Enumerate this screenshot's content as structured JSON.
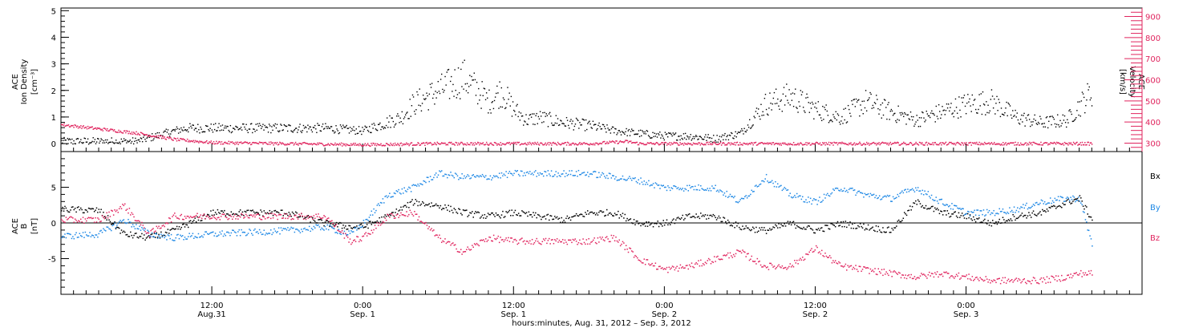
{
  "chart_data": [
    {
      "type": "scatter",
      "panel": "ion-density-velocity",
      "ylabel_left": [
        "ACE",
        "Ion Density",
        "[cm⁻³]"
      ],
      "ylabel_right": [
        "ACE",
        "Velocity",
        "[km/s]"
      ],
      "left_axis": {
        "ylim": [
          -0.3,
          5.1
        ],
        "ticks": [
          "0",
          "1",
          "2",
          "3",
          "4",
          "5"
        ],
        "tick_values": [
          0,
          1,
          2,
          3,
          4,
          5
        ]
      },
      "right_axis": {
        "ylim": [
          260,
          940
        ],
        "ticks": [
          "300",
          "400",
          "500",
          "600",
          "700",
          "800",
          "900"
        ],
        "tick_values": [
          300,
          400,
          500,
          600,
          700,
          800,
          900
        ]
      },
      "series": [
        {
          "name": "Ion Density",
          "axis": "left",
          "color": "#000000",
          "x_hours": [
            0,
            6,
            9,
            10,
            12,
            15,
            18,
            21,
            24,
            27,
            28,
            30,
            32,
            34,
            35,
            36,
            37,
            38,
            40,
            42,
            44,
            46,
            48,
            50,
            52,
            54,
            56,
            58,
            60,
            62,
            64,
            66,
            68,
            70,
            72,
            74,
            76,
            78,
            80,
            82
          ],
          "y": [
            0.1,
            0.1,
            0.5,
            0.6,
            0.6,
            0.6,
            0.6,
            0.6,
            0.5,
            1.0,
            1.5,
            2.0,
            2.5,
            1.6,
            2.0,
            1.3,
            0.9,
            1.0,
            0.8,
            0.7,
            0.5,
            0.4,
            0.3,
            0.3,
            0.2,
            0.4,
            1.5,
            1.8,
            1.3,
            1.0,
            1.6,
            1.2,
            0.9,
            1.2,
            1.5,
            1.6,
            1.0,
            0.8,
            0.9,
            2.0
          ]
        },
        {
          "name": "Velocity",
          "axis": "right",
          "color": "#e0245e",
          "x_hours": [
            0,
            3,
            6,
            9,
            12,
            18,
            24,
            30,
            36,
            42,
            45,
            46,
            48,
            54,
            60,
            66,
            72,
            78,
            82
          ],
          "y": [
            390,
            370,
            350,
            320,
            305,
            300,
            295,
            300,
            300,
            300,
            310,
            300,
            300,
            300,
            300,
            300,
            300,
            300,
            300
          ]
        }
      ]
    },
    {
      "type": "scatter",
      "panel": "magnetic-field",
      "ylabel_left": [
        "ACE",
        "B",
        "[nT]"
      ],
      "ylim": [
        -10,
        10
      ],
      "ticks": [
        "-5",
        "0",
        "5"
      ],
      "tick_values": [
        -5,
        0,
        5
      ],
      "legend": [
        "Bx",
        "By",
        "Bz"
      ],
      "legend_placement": "right",
      "series": [
        {
          "name": "Bx",
          "color": "#000000",
          "x_hours": [
            0,
            3,
            5,
            7,
            9,
            12,
            18,
            21,
            23,
            24,
            26,
            28,
            30,
            32,
            34,
            36,
            38,
            40,
            42,
            44,
            46,
            48,
            50,
            52,
            54,
            56,
            58,
            60,
            62,
            64,
            66,
            68,
            70,
            72,
            74,
            76,
            78,
            80,
            81,
            82
          ],
          "y": [
            2.0,
            1.8,
            -1.5,
            -2.0,
            -1.0,
            1.5,
            1.5,
            0.0,
            -0.5,
            -0.5,
            1.0,
            3.0,
            2.5,
            1.5,
            1.0,
            1.5,
            1.0,
            0.5,
            1.5,
            1.5,
            0.0,
            0.0,
            1.0,
            1.0,
            -0.5,
            -1.0,
            0.0,
            -1.0,
            0.0,
            -0.5,
            -1.0,
            3.0,
            1.5,
            1.0,
            0.0,
            1.0,
            1.5,
            3.0,
            3.5,
            0.5
          ]
        },
        {
          "name": "By",
          "color": "#1e88e5",
          "x_hours": [
            0,
            3,
            5,
            7,
            9,
            12,
            18,
            21,
            23,
            24,
            26,
            28,
            30,
            32,
            34,
            36,
            38,
            40,
            42,
            44,
            46,
            48,
            50,
            52,
            54,
            56,
            58,
            60,
            62,
            64,
            66,
            68,
            70,
            72,
            74,
            76,
            78,
            80,
            81,
            82
          ],
          "y": [
            -1.8,
            -1.5,
            0.5,
            -1.5,
            -2.0,
            -1.5,
            -1.0,
            -0.5,
            -1.5,
            0.0,
            4.0,
            5.0,
            7.0,
            6.5,
            6.5,
            7.0,
            7.0,
            7.0,
            7.0,
            6.5,
            6.0,
            5.0,
            5.0,
            5.0,
            3.0,
            6.5,
            4.0,
            3.0,
            5.0,
            4.0,
            3.5,
            5.0,
            3.0,
            1.5,
            1.5,
            2.0,
            3.0,
            3.5,
            3.5,
            -3.0
          ]
        },
        {
          "name": "Bz",
          "color": "#e0245e",
          "x_hours": [
            0,
            3,
            5,
            7,
            9,
            12,
            18,
            21,
            23,
            24,
            26,
            28,
            30,
            32,
            34,
            36,
            38,
            40,
            42,
            44,
            46,
            48,
            50,
            52,
            54,
            56,
            58,
            60,
            62,
            64,
            66,
            68,
            70,
            72,
            74,
            76,
            78,
            80,
            81,
            82
          ],
          "y": [
            0.5,
            0.5,
            2.5,
            -1.5,
            1.0,
            1.0,
            1.0,
            1.0,
            -2.5,
            -2.0,
            1.0,
            1.5,
            -2.0,
            -4.0,
            -2.0,
            -2.5,
            -2.5,
            -2.5,
            -2.5,
            -2.0,
            -5.0,
            -6.5,
            -6.0,
            -5.0,
            -4.0,
            -6.0,
            -6.0,
            -3.5,
            -6.0,
            -6.5,
            -7.0,
            -7.5,
            -7.0,
            -7.5,
            -8.0,
            -8.0,
            -8.0,
            -7.5,
            -7.0,
            -7.0
          ]
        }
      ]
    }
  ],
  "x_axis": {
    "xlabel": "hours:minutes, Aug. 31, 2012 – Sep.  3, 2012",
    "xlim_hours": [
      0,
      86
    ],
    "tick_hours": [
      12,
      24,
      36,
      48,
      60,
      72
    ],
    "tick_labels": [
      {
        "time": "12:00",
        "date": "Aug.31"
      },
      {
        "time": "0:00",
        "date": "Sep. 1"
      },
      {
        "time": "12:00",
        "date": "Sep. 1"
      },
      {
        "time": "0:00",
        "date": "Sep. 2"
      },
      {
        "time": "12:00",
        "date": "Sep. 2"
      },
      {
        "time": "0:00",
        "date": "Sep. 3"
      }
    ],
    "minor_step_hours": 1
  },
  "colors": {
    "black": "#000000",
    "pink": "#e0245e",
    "blue": "#1e88e5"
  }
}
